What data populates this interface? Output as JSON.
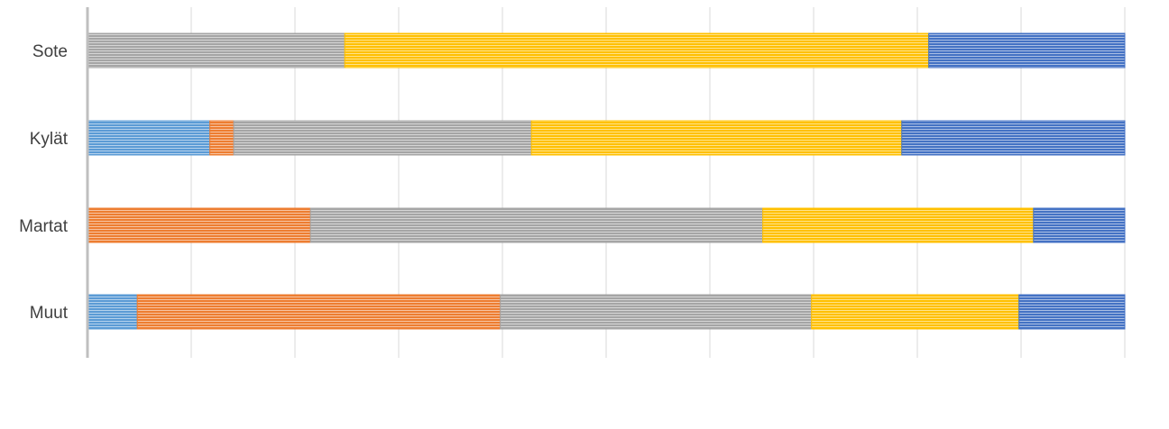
{
  "chart_data": {
    "type": "bar",
    "orientation": "horizontal",
    "stacked": "100%",
    "categories": [
      "Sote",
      "Kylät",
      "Martat",
      "Muut"
    ],
    "xlim": [
      0,
      1
    ],
    "grid": true,
    "legend": "none",
    "series": [
      {
        "color": "#5B9BD5",
        "values": [
          0.0,
          0.118,
          0.0,
          0.048
        ]
      },
      {
        "color": "#ED7D31",
        "values": [
          0.0,
          0.023,
          0.215,
          0.35
        ]
      },
      {
        "color": "#A5A5A5",
        "values": [
          0.248,
          0.287,
          0.436,
          0.3
        ]
      },
      {
        "color": "#FFC000",
        "values": [
          0.563,
          0.357,
          0.261,
          0.2
        ]
      },
      {
        "color": "#4472C4",
        "values": [
          0.189,
          0.215,
          0.088,
          0.102
        ]
      }
    ]
  }
}
